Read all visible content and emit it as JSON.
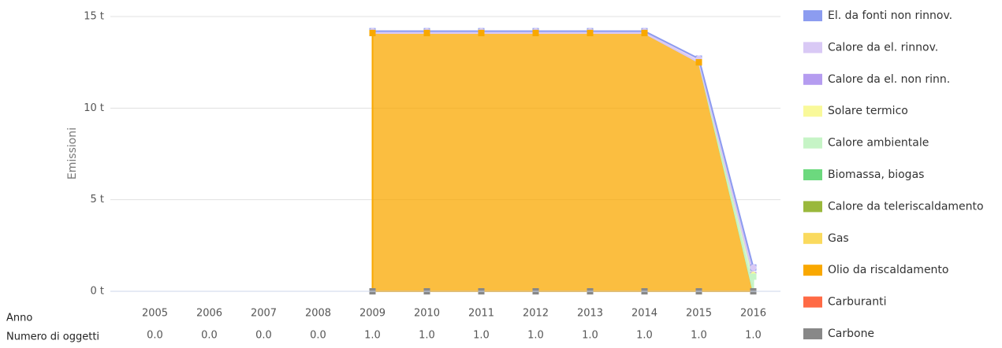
{
  "chart_data": {
    "type": "stacked_area",
    "y_label": "Emissioni",
    "x_label": "Anno",
    "categories": [
      "2005",
      "2006",
      "2007",
      "2008",
      "2009",
      "2010",
      "2011",
      "2012",
      "2013",
      "2014",
      "2015",
      "2016"
    ],
    "count_row": {
      "label": "Numero di oggetti",
      "values": [
        "0.0",
        "0.0",
        "0.0",
        "0.0",
        "1.0",
        "1.0",
        "1.0",
        "1.0",
        "1.0",
        "1.0",
        "1.0",
        "1.0"
      ]
    },
    "ylim": [
      0,
      15
    ],
    "yticks": [
      {
        "value": 0,
        "label": "0 t"
      },
      {
        "value": 5,
        "label": "5 t"
      },
      {
        "value": 10,
        "label": "10 t"
      },
      {
        "value": 15,
        "label": "15 t"
      }
    ],
    "grid": true,
    "legend": "right",
    "series": [
      {
        "name": "El. da fonti non rinnov.",
        "color": "#8c9cf0",
        "values": [
          null,
          null,
          null,
          null,
          0,
          0,
          0,
          0,
          0,
          0,
          0,
          0
        ]
      },
      {
        "name": "Calore da el. rinnov.",
        "color": "#d9c9f5",
        "values": [
          null,
          null,
          null,
          null,
          0.1,
          0.1,
          0.1,
          0.1,
          0.1,
          0.1,
          0.2,
          0.4
        ]
      },
      {
        "name": "Calore da el. non rinn.",
        "color": "#b59cf0",
        "values": [
          null,
          null,
          null,
          null,
          0,
          0,
          0,
          0,
          0,
          0,
          0,
          0
        ]
      },
      {
        "name": "Solare termico",
        "color": "#f9f99a",
        "values": [
          null,
          null,
          null,
          null,
          0,
          0,
          0,
          0,
          0,
          0,
          0,
          0.1
        ]
      },
      {
        "name": "Calore ambientale",
        "color": "#c6f4c6",
        "values": [
          null,
          null,
          null,
          null,
          0,
          0,
          0,
          0,
          0,
          0,
          0,
          0.8
        ]
      },
      {
        "name": "Biomassa, biogas",
        "color": "#6cd97e",
        "values": [
          null,
          null,
          null,
          null,
          0,
          0,
          0,
          0,
          0,
          0,
          0,
          0
        ]
      },
      {
        "name": "Calore da teleriscaldamento",
        "color": "#9ab83c",
        "values": [
          null,
          null,
          null,
          null,
          0,
          0,
          0,
          0,
          0,
          0,
          0,
          0
        ]
      },
      {
        "name": "Gas",
        "color": "#fada5e",
        "values": [
          null,
          null,
          null,
          null,
          0,
          0,
          0,
          0,
          0,
          0,
          0,
          0
        ]
      },
      {
        "name": "Olio da riscaldamento",
        "color": "#f9a800",
        "values": [
          null,
          null,
          null,
          null,
          14.1,
          14.1,
          14.1,
          14.1,
          14.1,
          14.1,
          12.5,
          0
        ]
      },
      {
        "name": "Carburanti",
        "color": "#ff6a45",
        "values": [
          null,
          null,
          null,
          null,
          0,
          0,
          0,
          0,
          0,
          0,
          0,
          0
        ]
      },
      {
        "name": "Carbone",
        "color": "#888888",
        "values": [
          null,
          null,
          null,
          null,
          0,
          0,
          0,
          0,
          0,
          0,
          0,
          0
        ]
      }
    ]
  }
}
